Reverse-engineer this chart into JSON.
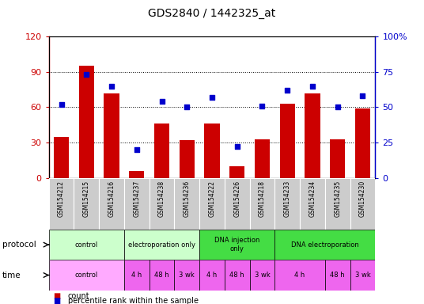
{
  "title": "GDS2840 / 1442325_at",
  "samples": [
    "GSM154212",
    "GSM154215",
    "GSM154216",
    "GSM154237",
    "GSM154238",
    "GSM154236",
    "GSM154222",
    "GSM154226",
    "GSM154218",
    "GSM154233",
    "GSM154234",
    "GSM154235",
    "GSM154230"
  ],
  "counts": [
    35,
    95,
    72,
    6,
    46,
    32,
    46,
    10,
    33,
    63,
    72,
    33,
    59
  ],
  "percentiles": [
    52,
    73,
    65,
    20,
    54,
    50,
    57,
    22,
    51,
    62,
    65,
    50,
    58
  ],
  "bar_color": "#cc0000",
  "dot_color": "#0000cc",
  "ylim_left": [
    0,
    120
  ],
  "ylim_right": [
    0,
    100
  ],
  "yticks_left": [
    0,
    30,
    60,
    90,
    120
  ],
  "yticks_right": [
    0,
    25,
    50,
    75,
    100
  ],
  "ytick_labels_left": [
    "0",
    "30",
    "60",
    "90",
    "120"
  ],
  "ytick_labels_right": [
    "0",
    "25",
    "50",
    "75",
    "100%"
  ],
  "protocol_data": [
    {
      "label": "control",
      "start": 0,
      "end": 3,
      "color": "#ccffcc"
    },
    {
      "label": "electroporation only",
      "start": 3,
      "end": 6,
      "color": "#ccffcc"
    },
    {
      "label": "DNA injection\nonly",
      "start": 6,
      "end": 9,
      "color": "#44dd44"
    },
    {
      "label": "DNA electroporation",
      "start": 9,
      "end": 13,
      "color": "#44dd44"
    }
  ],
  "time_data": [
    {
      "label": "control",
      "start": 0,
      "end": 3,
      "color": "#ffaaff"
    },
    {
      "label": "4 h",
      "start": 3,
      "end": 4,
      "color": "#ee66ee"
    },
    {
      "label": "48 h",
      "start": 4,
      "end": 5,
      "color": "#ee66ee"
    },
    {
      "label": "3 wk",
      "start": 5,
      "end": 6,
      "color": "#ee66ee"
    },
    {
      "label": "4 h",
      "start": 6,
      "end": 7,
      "color": "#ee66ee"
    },
    {
      "label": "48 h",
      "start": 7,
      "end": 8,
      "color": "#ee66ee"
    },
    {
      "label": "3 wk",
      "start": 8,
      "end": 9,
      "color": "#ee66ee"
    },
    {
      "label": "4 h",
      "start": 9,
      "end": 11,
      "color": "#ee66ee"
    },
    {
      "label": "48 h",
      "start": 11,
      "end": 12,
      "color": "#ee66ee"
    },
    {
      "label": "3 wk",
      "start": 12,
      "end": 13,
      "color": "#ee66ee"
    }
  ],
  "legend_count_label": "count",
  "legend_percentile_label": "percentile rank within the sample",
  "background_color": "#ffffff",
  "left_color": "#cc0000",
  "right_color": "#0000cc"
}
